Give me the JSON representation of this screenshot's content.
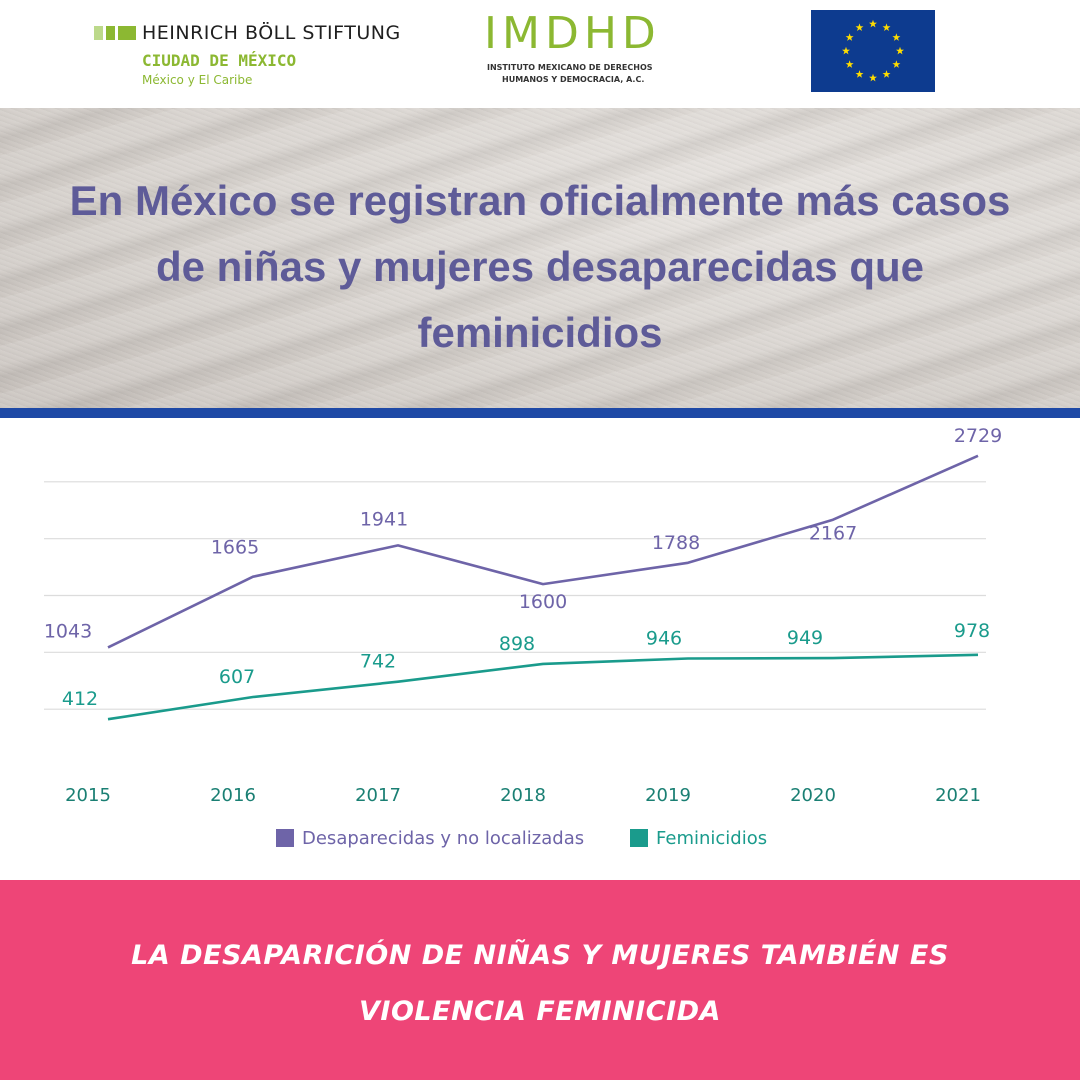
{
  "header": {
    "hbs": {
      "name": "HEINRICH BÖLL STIFTUNG",
      "city": "CIUDAD DE MÉXICO",
      "region": "México y El Caribe"
    },
    "imdhd": {
      "acronym": "IMDHD",
      "line1": "INSTITUTO MEXICANO DE DERECHOS",
      "line2": "HUMANOS Y DEMOCRACIA, A.C."
    },
    "eu_flag_icon": "eu-stars-flag"
  },
  "headline": "En México se registran oficialmente más casos de niñas y mujeres desaparecidas que feminicidios",
  "chart_data": {
    "type": "line",
    "categories": [
      "2015",
      "2016",
      "2017",
      "2018",
      "2019",
      "2020",
      "2021"
    ],
    "series": [
      {
        "name": "Desaparecidas y no localizadas",
        "color": "#6e64a8",
        "values": [
          1043,
          1665,
          1941,
          1600,
          1788,
          2167,
          2729
        ],
        "labels": [
          "1043",
          "1665",
          "1941",
          "1600",
          "1788",
          "2167",
          "2729"
        ]
      },
      {
        "name": "Feminicidios",
        "color": "#1a9b8c",
        "values": [
          412,
          607,
          742,
          898,
          946,
          949,
          978
        ],
        "labels": [
          "412",
          "607",
          "742",
          "898",
          "946",
          "949",
          "978"
        ]
      }
    ],
    "ylim": [
      0,
      3000
    ],
    "grid": true,
    "legend": "bottom"
  },
  "footer": {
    "line1": "LA DESAPARICIÓN DE NIÑAS Y MUJERES TAMBIÉN ES",
    "line2": "VIOLENCIA FEMINICIDA"
  }
}
